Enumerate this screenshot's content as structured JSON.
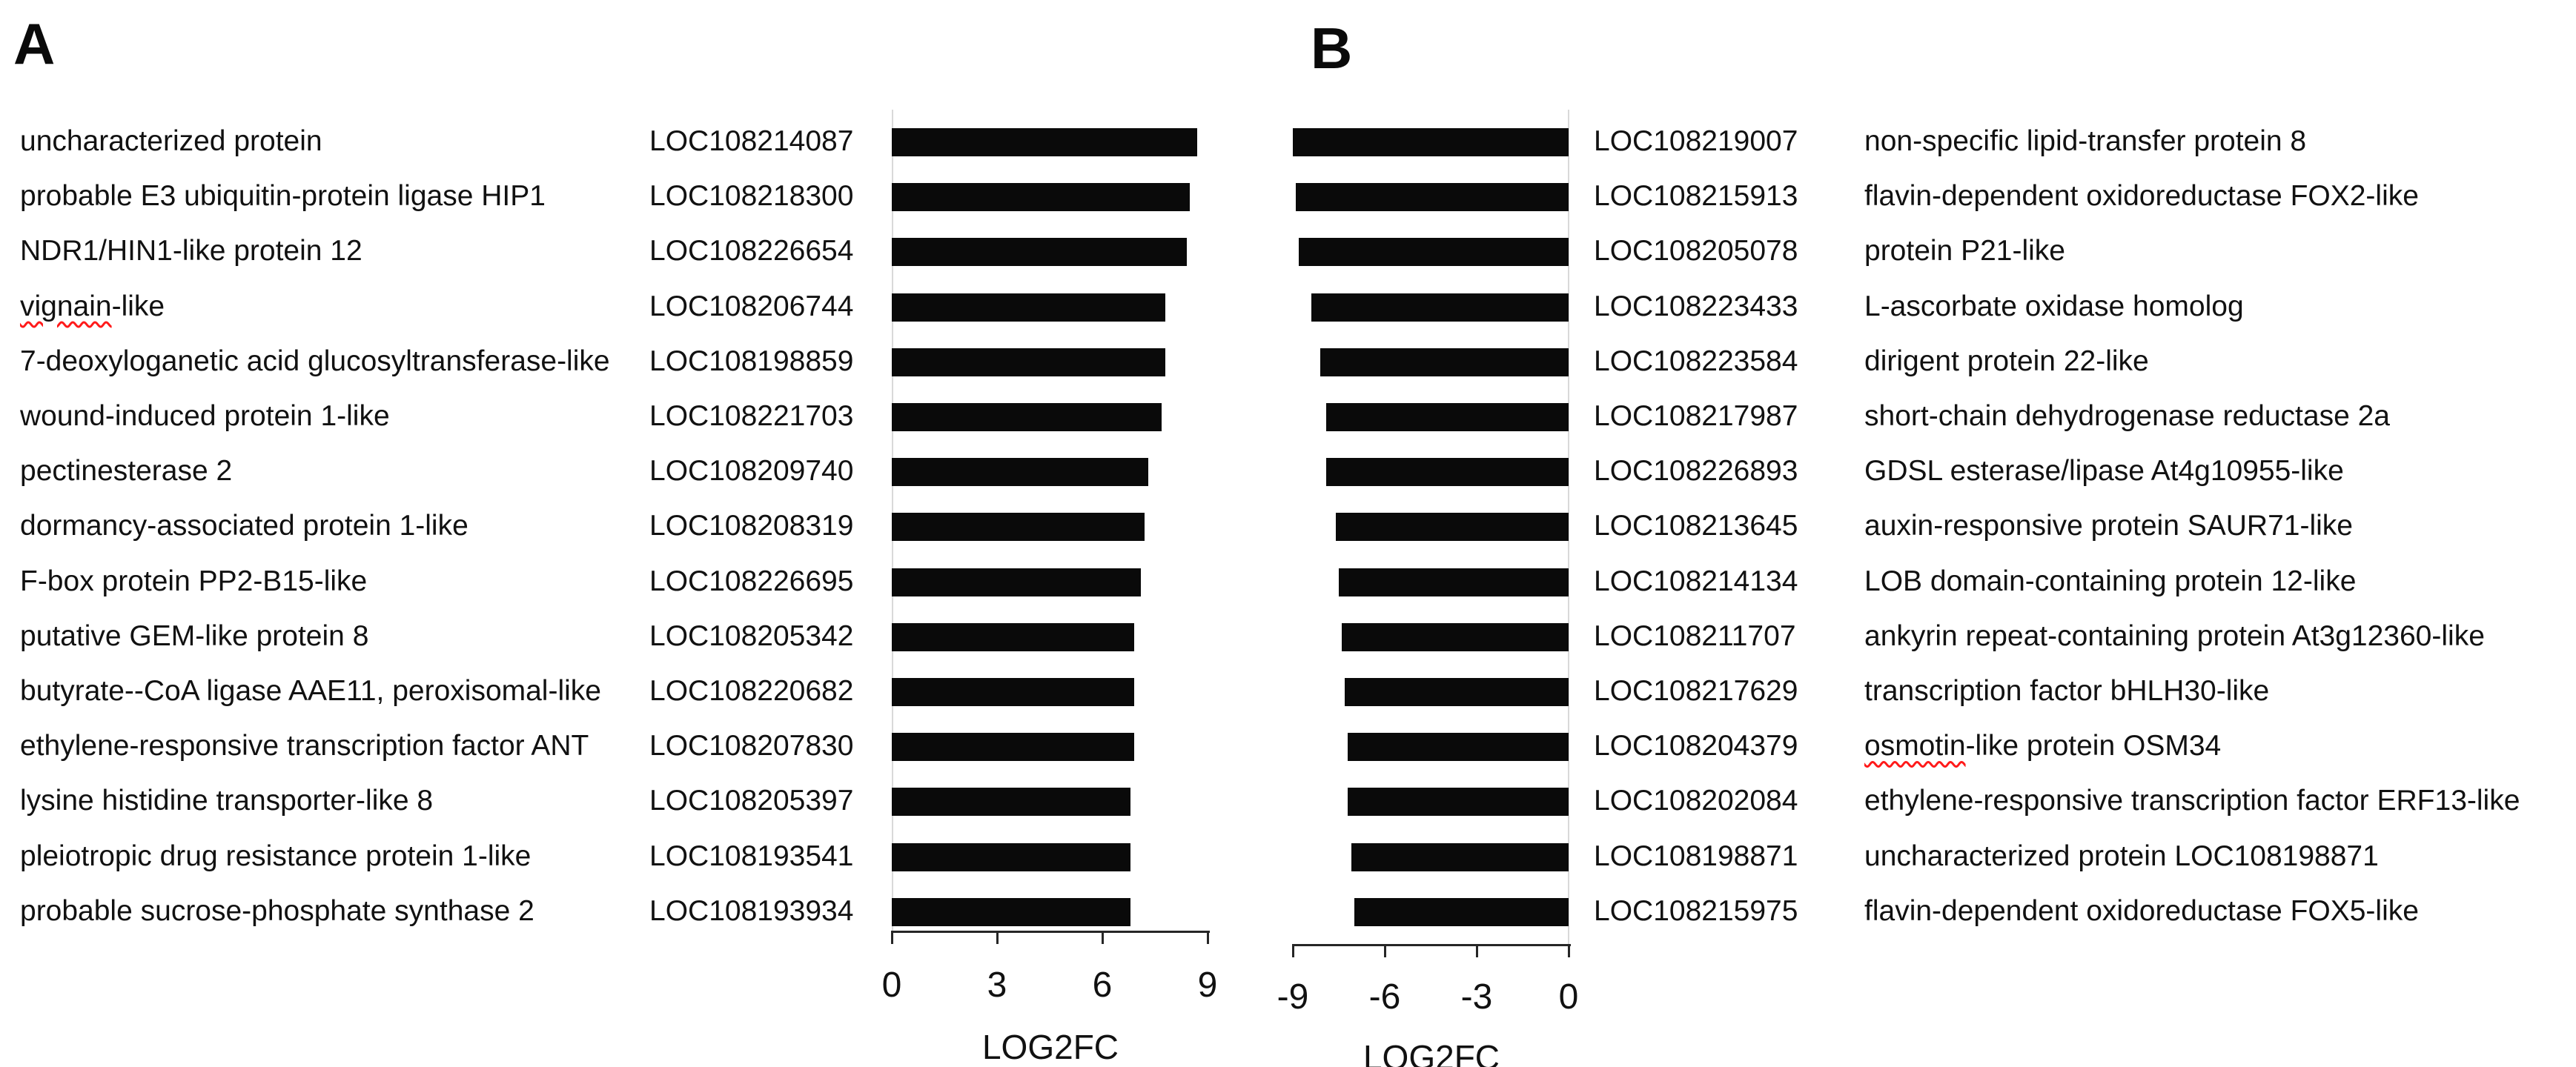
{
  "figure": {
    "background": "#ffffff",
    "bar_color": "#0a0a0a",
    "axis_color": "#262626",
    "category_line_color": "#d9d9d9",
    "squiggle_color": "#ff1a1a"
  },
  "panels": [
    {
      "id": "A",
      "title": "A",
      "axis": {
        "label": "LOG2FC",
        "min": 0,
        "max": 9,
        "ticks": [
          0,
          3,
          6,
          9
        ]
      },
      "rows": [
        {
          "description": "uncharacterized protein",
          "squiggle": "",
          "locus": "LOC108214087",
          "log2fc": 8.7
        },
        {
          "description": "probable E3 ubiquitin-protein ligase HIP1",
          "squiggle": "",
          "locus": "LOC108218300",
          "log2fc": 8.5
        },
        {
          "description": "NDR1/HIN1-like protein 12",
          "squiggle": "",
          "locus": "LOC108226654",
          "log2fc": 8.4
        },
        {
          "description": "vignain-like",
          "squiggle": "vignain",
          "locus": "LOC108206744",
          "log2fc": 7.8
        },
        {
          "description": "7-deoxyloganetic acid glucosyltransferase-like",
          "squiggle": "",
          "locus": "LOC108198859",
          "log2fc": 7.8
        },
        {
          "description": "wound-induced protein 1-like",
          "squiggle": "",
          "locus": "LOC108221703",
          "log2fc": 7.7
        },
        {
          "description": "pectinesterase 2",
          "squiggle": "",
          "locus": "LOC108209740",
          "log2fc": 7.3
        },
        {
          "description": "dormancy-associated protein 1-like",
          "squiggle": "",
          "locus": "LOC108208319",
          "log2fc": 7.2
        },
        {
          "description": "F-box protein PP2-B15-like",
          "squiggle": "",
          "locus": "LOC108226695",
          "log2fc": 7.1
        },
        {
          "description": "putative GEM-like protein 8",
          "squiggle": "",
          "locus": "LOC108205342",
          "log2fc": 6.9
        },
        {
          "description": "butyrate--CoA ligase AAE11, peroxisomal-like",
          "squiggle": "",
          "locus": "LOC108220682",
          "log2fc": 6.9
        },
        {
          "description": "ethylene-responsive transcription factor ANT",
          "squiggle": "",
          "locus": "LOC108207830",
          "log2fc": 6.9
        },
        {
          "description": "lysine histidine transporter-like 8",
          "squiggle": "",
          "locus": "LOC108205397",
          "log2fc": 6.8
        },
        {
          "description": "pleiotropic drug resistance protein 1-like",
          "squiggle": "",
          "locus": "LOC108193541",
          "log2fc": 6.8
        },
        {
          "description": "probable sucrose-phosphate synthase 2",
          "squiggle": "",
          "locus": "LOC108193934",
          "log2fc": 6.8
        }
      ]
    },
    {
      "id": "B",
      "title": "B",
      "axis": {
        "label": "LOG2FC",
        "min": -9,
        "max": 0,
        "ticks": [
          -9,
          -6,
          -3,
          0
        ]
      },
      "rows": [
        {
          "locus": "LOC108219007",
          "description": "non-specific lipid-transfer protein 8",
          "squiggle": "",
          "log2fc": -9.0
        },
        {
          "locus": "LOC108215913",
          "description": "flavin-dependent oxidoreductase FOX2-like",
          "squiggle": "",
          "log2fc": -8.9
        },
        {
          "locus": "LOC108205078",
          "description": "protein P21-like",
          "squiggle": "",
          "log2fc": -8.8
        },
        {
          "locus": "LOC108223433",
          "description": "L-ascorbate oxidase homolog",
          "squiggle": "",
          "log2fc": -8.4
        },
        {
          "locus": "LOC108223584",
          "description": "dirigent protein 22-like",
          "squiggle": "",
          "log2fc": -8.1
        },
        {
          "locus": "LOC108217987",
          "description": "short-chain dehydrogenase reductase 2a",
          "squiggle": "",
          "log2fc": -7.9
        },
        {
          "locus": "LOC108226893",
          "description": "GDSL esterase/lipase At4g10955-like",
          "squiggle": "",
          "log2fc": -7.9
        },
        {
          "locus": "LOC108213645",
          "description": "auxin-responsive protein SAUR71-like",
          "squiggle": "",
          "log2fc": -7.6
        },
        {
          "locus": "LOC108214134",
          "description": "LOB domain-containing protein 12-like",
          "squiggle": "",
          "log2fc": -7.5
        },
        {
          "locus": "LOC108211707",
          "description": "ankyrin repeat-containing protein At3g12360-like",
          "squiggle": "",
          "log2fc": -7.4
        },
        {
          "locus": "LOC108217629",
          "description": "transcription factor bHLH30-like",
          "squiggle": "",
          "log2fc": -7.3
        },
        {
          "locus": "LOC108204379",
          "description": "osmotin-like protein OSM34",
          "squiggle": "osmotin",
          "log2fc": -7.2
        },
        {
          "locus": "LOC108202084",
          "description": "ethylene-responsive transcription factor ERF13-like",
          "squiggle": "",
          "log2fc": -7.2
        },
        {
          "locus": "LOC108198871",
          "description": "uncharacterized protein LOC108198871",
          "squiggle": "",
          "log2fc": -7.1
        },
        {
          "locus": "LOC108215975",
          "description": "flavin-dependent oxidoreductase FOX5-like",
          "squiggle": "",
          "log2fc": -7.0
        }
      ]
    }
  ],
  "chart_data": [
    {
      "type": "bar",
      "orientation": "horizontal",
      "title": "A",
      "xlabel": "LOG2FC",
      "xlim": [
        0,
        9
      ],
      "xticks": [
        0,
        3,
        6,
        9
      ],
      "grid": false,
      "bar_color": "#0a0a0a",
      "categories": [
        "LOC108214087",
        "LOC108218300",
        "LOC108226654",
        "LOC108206744",
        "LOC108198859",
        "LOC108221703",
        "LOC108209740",
        "LOC108208319",
        "LOC108226695",
        "LOC108205342",
        "LOC108220682",
        "LOC108207830",
        "LOC108205397",
        "LOC108193541",
        "LOC108193934"
      ],
      "category_descriptions": [
        "uncharacterized protein",
        "probable E3 ubiquitin-protein ligase HIP1",
        "NDR1/HIN1-like protein 12",
        "vignain-like",
        "7-deoxyloganetic acid glucosyltransferase-like",
        "wound-induced protein 1-like",
        "pectinesterase 2",
        "dormancy-associated protein 1-like",
        "F-box protein PP2-B15-like",
        "putative GEM-like protein 8",
        "butyrate--CoA ligase AAE11, peroxisomal-like",
        "ethylene-responsive transcription factor ANT",
        "lysine histidine transporter-like 8",
        "pleiotropic drug resistance protein 1-like",
        "probable sucrose-phosphate synthase 2"
      ],
      "values": [
        8.7,
        8.5,
        8.4,
        7.8,
        7.8,
        7.7,
        7.3,
        7.2,
        7.1,
        6.9,
        6.9,
        6.9,
        6.8,
        6.8,
        6.8
      ]
    },
    {
      "type": "bar",
      "orientation": "horizontal",
      "title": "B",
      "xlabel": "LOG2FC",
      "xlim": [
        -9,
        0
      ],
      "xticks": [
        -9,
        -6,
        -3,
        0
      ],
      "grid": false,
      "bar_color": "#0a0a0a",
      "categories": [
        "LOC108219007",
        "LOC108215913",
        "LOC108205078",
        "LOC108223433",
        "LOC108223584",
        "LOC108217987",
        "LOC108226893",
        "LOC108213645",
        "LOC108214134",
        "LOC108211707",
        "LOC108217629",
        "LOC108204379",
        "LOC108202084",
        "LOC108198871",
        "LOC108215975"
      ],
      "category_descriptions": [
        "non-specific lipid-transfer protein 8",
        "flavin-dependent oxidoreductase FOX2-like",
        "protein P21-like",
        "L-ascorbate oxidase homolog",
        "dirigent protein 22-like",
        "short-chain dehydrogenase reductase 2a",
        "GDSL esterase/lipase At4g10955-like",
        "auxin-responsive protein SAUR71-like",
        "LOB domain-containing protein 12-like",
        "ankyrin repeat-containing protein At3g12360-like",
        "transcription factor bHLH30-like",
        "osmotin-like protein OSM34",
        "ethylene-responsive transcription factor ERF13-like",
        "uncharacterized protein LOC108198871",
        "flavin-dependent oxidoreductase FOX5-like"
      ],
      "values": [
        -9.0,
        -8.9,
        -8.8,
        -8.4,
        -8.1,
        -7.9,
        -7.9,
        -7.6,
        -7.5,
        -7.4,
        -7.3,
        -7.2,
        -7.2,
        -7.1,
        -7.0
      ]
    }
  ]
}
